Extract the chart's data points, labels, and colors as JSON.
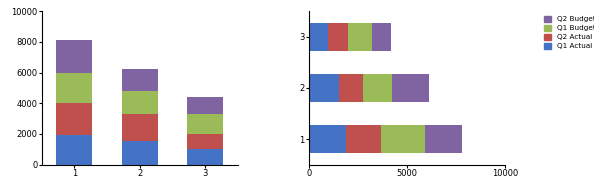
{
  "vertical": {
    "categories": [
      1,
      2,
      3
    ],
    "q1_actual": [
      1900,
      1550,
      1000
    ],
    "q2_actual": [
      2100,
      1750,
      1000
    ],
    "q1_budget": [
      2000,
      1500,
      1300
    ],
    "q2_budget": [
      2100,
      1400,
      1100
    ],
    "colors": [
      "#4472c4",
      "#c0504d",
      "#9bbb59",
      "#8064a2"
    ],
    "ylim": [
      0,
      10000
    ],
    "yticks": [
      0,
      2000,
      4000,
      6000,
      8000,
      10000
    ],
    "xticks": [
      1,
      2,
      3
    ]
  },
  "horizontal": {
    "categories": [
      1,
      2,
      3
    ],
    "q1_actual": [
      1900,
      1550,
      1000
    ],
    "q2_actual": [
      1800,
      1200,
      1000
    ],
    "q1_budget": [
      2200,
      1500,
      1200
    ],
    "q2_budget": [
      1900,
      1900,
      1000
    ],
    "colors": [
      "#4472c4",
      "#c0504d",
      "#9bbb59",
      "#8064a2"
    ],
    "xlim": [
      0,
      10000
    ],
    "xticks": [
      0,
      5000,
      10000
    ],
    "ylim": [
      0.5,
      3.5
    ],
    "yticks": [
      1,
      2,
      3
    ]
  },
  "bg_color": "#ffffff",
  "bar_width": 0.55
}
